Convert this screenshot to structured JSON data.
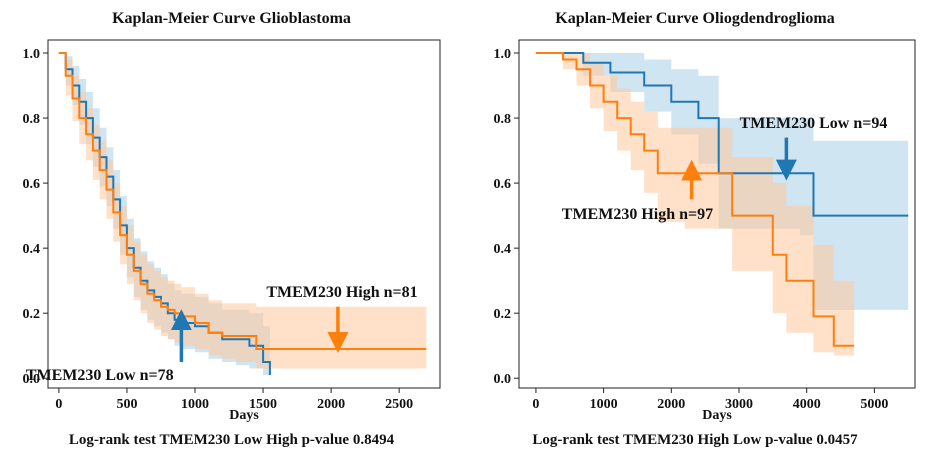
{
  "colors": {
    "low": "#1f77b4",
    "low_fill": "#a9cfe8",
    "high": "#ff7f0e",
    "high_fill": "#ffc79a"
  },
  "chart_data": [
    {
      "type": "line",
      "title": "Kaplan-Meier Curve Glioblastoma",
      "xlabel": "Days",
      "ylabel": "",
      "footer": "Log-rank test TMEM230 Low High p-value 0.8494",
      "xlim": [
        -80,
        2800
      ],
      "ylim": [
        -0.03,
        1.04
      ],
      "xticks": [
        0,
        500,
        1000,
        1500,
        2000,
        2500
      ],
      "yticks": [
        "0.0",
        "0.2",
        "0.4",
        "0.6",
        "0.8",
        "1.0"
      ],
      "grid": false,
      "series": [
        {
          "name": "TMEM230 Low n=78",
          "key": "low",
          "x": [
            0,
            50,
            100,
            150,
            200,
            250,
            300,
            350,
            400,
            450,
            500,
            550,
            600,
            650,
            700,
            750,
            800,
            850,
            900,
            1000,
            1100,
            1200,
            1300,
            1400,
            1500,
            1550
          ],
          "y": [
            1.0,
            0.95,
            0.9,
            0.85,
            0.8,
            0.74,
            0.68,
            0.62,
            0.55,
            0.47,
            0.4,
            0.34,
            0.3,
            0.27,
            0.25,
            0.23,
            0.2,
            0.18,
            0.17,
            0.16,
            0.14,
            0.12,
            0.12,
            0.1,
            0.05,
            0.01
          ],
          "lower": [
            1.0,
            0.9,
            0.84,
            0.78,
            0.72,
            0.65,
            0.59,
            0.53,
            0.46,
            0.38,
            0.31,
            0.25,
            0.21,
            0.18,
            0.16,
            0.14,
            0.12,
            0.1,
            0.09,
            0.08,
            0.06,
            0.05,
            0.04,
            0.03,
            0.01,
            0.0
          ],
          "upper": [
            1.0,
            0.99,
            0.96,
            0.92,
            0.88,
            0.83,
            0.77,
            0.71,
            0.64,
            0.56,
            0.49,
            0.43,
            0.39,
            0.36,
            0.34,
            0.32,
            0.29,
            0.27,
            0.26,
            0.25,
            0.23,
            0.21,
            0.21,
            0.2,
            0.16,
            0.12
          ]
        },
        {
          "name": "TMEM230 High n=81",
          "key": "high",
          "x": [
            0,
            50,
            100,
            150,
            200,
            250,
            300,
            350,
            400,
            450,
            500,
            550,
            600,
            650,
            700,
            750,
            800,
            850,
            900,
            1000,
            1100,
            1200,
            1300,
            1400,
            1450,
            1500,
            2700
          ],
          "y": [
            1.0,
            0.93,
            0.86,
            0.8,
            0.75,
            0.7,
            0.64,
            0.58,
            0.51,
            0.44,
            0.38,
            0.33,
            0.29,
            0.26,
            0.24,
            0.22,
            0.21,
            0.2,
            0.19,
            0.17,
            0.14,
            0.13,
            0.13,
            0.13,
            0.09,
            0.09,
            0.09
          ],
          "lower": [
            1.0,
            0.87,
            0.79,
            0.72,
            0.67,
            0.61,
            0.55,
            0.49,
            0.42,
            0.35,
            0.29,
            0.24,
            0.2,
            0.17,
            0.15,
            0.13,
            0.12,
            0.11,
            0.1,
            0.09,
            0.07,
            0.06,
            0.05,
            0.05,
            0.03,
            0.03,
            0.03
          ],
          "upper": [
            1.0,
            0.98,
            0.93,
            0.88,
            0.83,
            0.78,
            0.73,
            0.67,
            0.6,
            0.53,
            0.47,
            0.42,
            0.38,
            0.35,
            0.33,
            0.31,
            0.3,
            0.29,
            0.28,
            0.26,
            0.24,
            0.23,
            0.23,
            0.23,
            0.22,
            0.22,
            0.22
          ]
        }
      ],
      "annotations": [
        {
          "text": "TMEM230 High n=81",
          "x": 2080,
          "y": 0.25,
          "anchor": "middle",
          "arrow_color": "high",
          "arrow_from": [
            2050,
            0.22
          ],
          "arrow_to": [
            2050,
            0.11
          ]
        },
        {
          "text": "TMEM230 Low n=78",
          "x": 300,
          "y": -0.005,
          "anchor": "middle",
          "arrow_color": "low",
          "arrow_from": [
            900,
            0.05
          ],
          "arrow_to": [
            900,
            0.18
          ]
        }
      ]
    },
    {
      "type": "line",
      "title": "Kaplan-Meier Curve Oliogdendroglioma",
      "xlabel": "Days",
      "ylabel": "",
      "footer": "Log-rank test TMEM230 High Low p-value 0.0457",
      "xlim": [
        -250,
        5600
      ],
      "ylim": [
        -0.03,
        1.04
      ],
      "xticks": [
        0,
        1000,
        2000,
        3000,
        4000,
        5000
      ],
      "yticks": [
        "0.0",
        "0.2",
        "0.4",
        "0.6",
        "0.8",
        "1.0"
      ],
      "grid": false,
      "series": [
        {
          "name": "TMEM230 Low n=94",
          "key": "low",
          "x": [
            0,
            600,
            700,
            1100,
            1600,
            2000,
            2400,
            2700,
            3900,
            4100,
            5500
          ],
          "y": [
            1.0,
            1.0,
            0.97,
            0.94,
            0.9,
            0.85,
            0.8,
            0.63,
            0.63,
            0.5,
            0.5
          ],
          "lower": [
            1.0,
            1.0,
            0.93,
            0.88,
            0.82,
            0.75,
            0.66,
            0.46,
            0.44,
            0.21,
            0.21
          ],
          "upper": [
            1.0,
            1.0,
            1.0,
            1.0,
            0.98,
            0.95,
            0.93,
            0.8,
            0.8,
            0.73,
            0.73
          ]
        },
        {
          "name": "TMEM230 High n=97",
          "key": "high",
          "x": [
            0,
            400,
            600,
            800,
            1000,
            1200,
            1400,
            1600,
            1800,
            2200,
            2900,
            3500,
            3700,
            4100,
            4400,
            4700
          ],
          "y": [
            1.0,
            0.98,
            0.95,
            0.9,
            0.85,
            0.8,
            0.75,
            0.7,
            0.63,
            0.63,
            0.5,
            0.38,
            0.3,
            0.19,
            0.1,
            0.1
          ],
          "lower": [
            1.0,
            0.95,
            0.9,
            0.83,
            0.76,
            0.7,
            0.64,
            0.57,
            0.48,
            0.46,
            0.33,
            0.2,
            0.14,
            0.08,
            0.07,
            0.07
          ],
          "upper": [
            1.0,
            1.0,
            1.0,
            0.97,
            0.93,
            0.89,
            0.85,
            0.82,
            0.77,
            0.77,
            0.68,
            0.6,
            0.53,
            0.41,
            0.3,
            0.3
          ]
        }
      ],
      "annotations": [
        {
          "text": "TMEM230 Low n=94",
          "x": 4100,
          "y": 0.77,
          "anchor": "middle",
          "arrow_color": "low",
          "arrow_from": [
            3700,
            0.74
          ],
          "arrow_to": [
            3700,
            0.64
          ]
        },
        {
          "text": "TMEM230 High n=97",
          "x": 1500,
          "y": 0.49,
          "anchor": "middle",
          "arrow_color": "high",
          "arrow_from": [
            2300,
            0.55
          ],
          "arrow_to": [
            2300,
            0.64
          ]
        }
      ]
    }
  ]
}
